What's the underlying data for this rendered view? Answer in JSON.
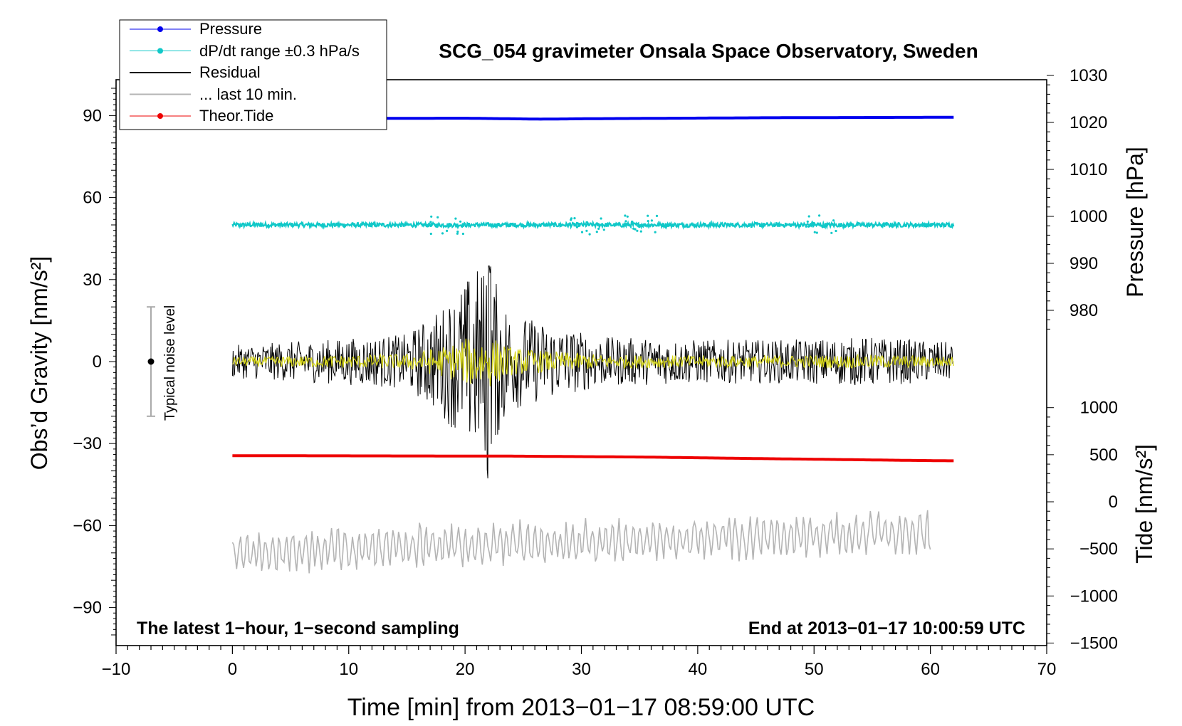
{
  "chart_data": {
    "type": "line",
    "title": "SCG_054 gravimeter Onsala Space Observatory, Sweden",
    "xlabel": "Time [min] from 2013−01−17 08:59:00 UTC",
    "ylabel_left": "Obs’d Gravity [nm/s²]",
    "ylabel_right_top": "Pressure [hPa]",
    "ylabel_right_bottom": "Tide [nm/s²]",
    "xlim": [
      -10,
      70
    ],
    "ylim_left": [
      -100,
      100
    ],
    "x_ticks": [
      "−10",
      "0",
      "10",
      "20",
      "30",
      "40",
      "50",
      "60",
      "70"
    ],
    "y_ticks_left": [
      "−90",
      "−60",
      "−30",
      "0",
      "30",
      "60",
      "90"
    ],
    "pressure_ticks": [
      "980",
      "990",
      "1000",
      "1010",
      "1020",
      "1030"
    ],
    "tide_ticks": [
      "−1500",
      "−1000",
      "−500",
      "0",
      "500",
      "1000"
    ],
    "annotation_left": "The latest 1−hour, 1−second sampling",
    "annotation_right": "End at 2013−01−17 10:00:59 UTC",
    "noise_label": "Typical noise level",
    "noise_level": {
      "x": -7,
      "center": 0,
      "low": -20,
      "high": 20
    },
    "legend": [
      {
        "label": "Pressure",
        "color": "#0000ee",
        "style": "line-dot"
      },
      {
        "label": "dP/dt range ±0.3 hPa/s",
        "color": "#10c8c8",
        "style": "line-dot"
      },
      {
        "label": "Residual",
        "color": "#000000",
        "style": "line"
      },
      {
        "label": "... last 10 min.",
        "color": "#b4b4b4",
        "style": "line"
      },
      {
        "label": "Theor.Tide",
        "color": "#ee0000",
        "style": "line-dot"
      }
    ],
    "series": [
      {
        "name": "Pressure",
        "unit": "hPa",
        "x": [
          0,
          20,
          26.5,
          31,
          46,
          62
        ],
        "values": [
          1020.8,
          1020.9,
          1020.7,
          1020.8,
          1021.0,
          1021.1
        ]
      },
      {
        "name": "dP/dt range ±0.3 hPa/s",
        "x": [
          0,
          62
        ],
        "values": [
          50,
          50
        ],
        "spread": 1.5
      },
      {
        "name": "Residual",
        "x": [
          0,
          62
        ],
        "envelope": [
          [
            0,
            6
          ],
          [
            8,
            8
          ],
          [
            15,
            10
          ],
          [
            18,
            20
          ],
          [
            21,
            35
          ],
          [
            22,
            35
          ],
          [
            24,
            18
          ],
          [
            27,
            14
          ],
          [
            32,
            9
          ],
          [
            40,
            8
          ],
          [
            48,
            8
          ],
          [
            55,
            9
          ],
          [
            62,
            7
          ]
        ]
      },
      {
        "name": "Theor.Tide",
        "unit": "nm/s²",
        "x": [
          0,
          24,
          35.5,
          44.5,
          51.5,
          58,
          62
        ],
        "values": [
          490,
          485,
          475,
          460,
          450,
          440,
          435
        ]
      },
      {
        "name": "... last 10 min.",
        "x": [
          0,
          60
        ],
        "values": [
          -70,
          -62
        ]
      }
    ]
  }
}
